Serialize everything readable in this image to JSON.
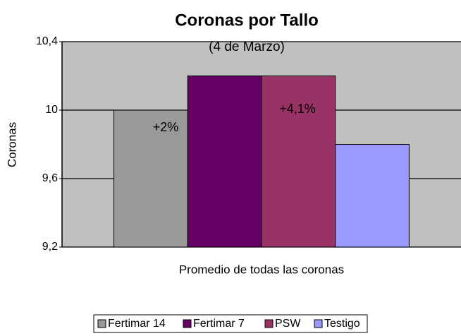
{
  "chart_data": {
    "type": "bar",
    "title": "Coronas por Tallo",
    "subtitle": "(4 de Marzo)",
    "y_label": "Coronas",
    "categories": [
      "Promedio de todas las coronas"
    ],
    "series": [
      {
        "name": "Fertimar 14",
        "color": "#999999",
        "values": [
          10.0
        ]
      },
      {
        "name": "Fertimar 7",
        "color": "#660066",
        "values": [
          10.2
        ]
      },
      {
        "name": "PSW",
        "color": "#993366",
        "values": [
          10.2
        ]
      },
      {
        "name": "Testigo",
        "color": "#9999ff",
        "values": [
          9.8
        ]
      }
    ],
    "annotations": [
      "+2%",
      "+4,1%"
    ],
    "ylim": [
      9.2,
      10.4
    ],
    "yticks": [
      {
        "value": 9.2,
        "label": "9,2"
      },
      {
        "value": 9.6,
        "label": "9,6"
      },
      10,
      {
        "value": 10.4,
        "label": "10,4"
      }
    ],
    "grid": true,
    "plot_background": "#c0c0c0",
    "legend": "bottom"
  }
}
